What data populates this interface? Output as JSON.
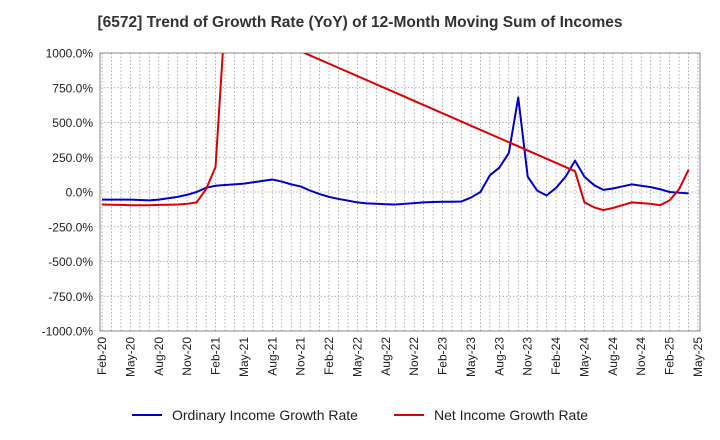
{
  "chart_data": {
    "type": "line",
    "title": "[6572]  Trend of Growth Rate (YoY) of 12-Month Moving Sum of Incomes",
    "xlabel": "",
    "ylabel": "",
    "ylim": [
      -1000,
      1000
    ],
    "yticks": [
      "1000.0%",
      "750.0%",
      "500.0%",
      "250.0%",
      "0.0%",
      "-250.0%",
      "-500.0%",
      "-750.0%",
      "-1000.0%"
    ],
    "yvalues": [
      1000,
      750,
      500,
      250,
      0,
      -250,
      -500,
      -750,
      -1000
    ],
    "xticks": [
      "Feb-20",
      "May-20",
      "Aug-20",
      "Nov-20",
      "Feb-21",
      "May-21",
      "Aug-21",
      "Nov-21",
      "Feb-22",
      "May-22",
      "Aug-22",
      "Nov-22",
      "Feb-23",
      "May-23",
      "Aug-23",
      "Nov-23",
      "Feb-24",
      "May-24",
      "Aug-24",
      "Nov-24",
      "Feb-25",
      "May-25"
    ],
    "grid": true,
    "legend_position": "bottom",
    "series": [
      {
        "name": "Ordinary Income Growth Rate",
        "color": "#0000cc",
        "points": [
          [
            0,
            -55
          ],
          [
            1,
            -55
          ],
          [
            2,
            -55
          ],
          [
            3,
            -55
          ],
          [
            4,
            -58
          ],
          [
            5,
            -60
          ],
          [
            6,
            -55
          ],
          [
            7,
            -45
          ],
          [
            8,
            -35
          ],
          [
            9,
            -20
          ],
          [
            10,
            0
          ],
          [
            11,
            30
          ],
          [
            12,
            45
          ],
          [
            13,
            50
          ],
          [
            14,
            55
          ],
          [
            15,
            60
          ],
          [
            16,
            70
          ],
          [
            17,
            80
          ],
          [
            18,
            90
          ],
          [
            19,
            75
          ],
          [
            20,
            55
          ],
          [
            21,
            40
          ],
          [
            22,
            10
          ],
          [
            23,
            -15
          ],
          [
            24,
            -35
          ],
          [
            25,
            -50
          ],
          [
            26,
            -62
          ],
          [
            27,
            -75
          ],
          [
            28,
            -82
          ],
          [
            29,
            -85
          ],
          [
            30,
            -88
          ],
          [
            31,
            -90
          ],
          [
            32,
            -85
          ],
          [
            33,
            -80
          ],
          [
            34,
            -75
          ],
          [
            35,
            -72
          ],
          [
            36,
            -70
          ],
          [
            37,
            -70
          ],
          [
            38,
            -68
          ],
          [
            39,
            -40
          ],
          [
            40,
            0
          ],
          [
            41,
            120
          ],
          [
            42,
            175
          ],
          [
            43,
            280
          ],
          [
            44,
            680
          ],
          [
            45,
            110
          ],
          [
            46,
            10
          ],
          [
            47,
            -25
          ],
          [
            48,
            30
          ],
          [
            49,
            110
          ],
          [
            50,
            225
          ],
          [
            51,
            110
          ],
          [
            52,
            50
          ],
          [
            53,
            15
          ],
          [
            54,
            25
          ],
          [
            55,
            40
          ],
          [
            56,
            55
          ],
          [
            57,
            45
          ],
          [
            58,
            35
          ],
          [
            59,
            20
          ],
          [
            60,
            0
          ],
          [
            61,
            -5
          ],
          [
            62,
            -10
          ]
        ]
      },
      {
        "name": "Net Income Growth Rate",
        "color": "#dd0000",
        "points": [
          [
            0,
            -90
          ],
          [
            1,
            -92
          ],
          [
            2,
            -93
          ],
          [
            3,
            -95
          ],
          [
            4,
            -95
          ],
          [
            5,
            -95
          ],
          [
            6,
            -93
          ],
          [
            7,
            -92
          ],
          [
            8,
            -90
          ],
          [
            9,
            -85
          ],
          [
            10,
            -75
          ],
          [
            11,
            20
          ],
          [
            12,
            180
          ],
          [
            13,
            1250
          ],
          [
            50,
            150
          ],
          [
            51,
            -75
          ],
          [
            52,
            -110
          ],
          [
            53,
            -130
          ],
          [
            54,
            -115
          ],
          [
            55,
            -95
          ],
          [
            56,
            -75
          ],
          [
            57,
            -80
          ],
          [
            58,
            -85
          ],
          [
            59,
            -95
          ],
          [
            60,
            -60
          ],
          [
            61,
            20
          ],
          [
            62,
            160
          ]
        ]
      }
    ]
  }
}
